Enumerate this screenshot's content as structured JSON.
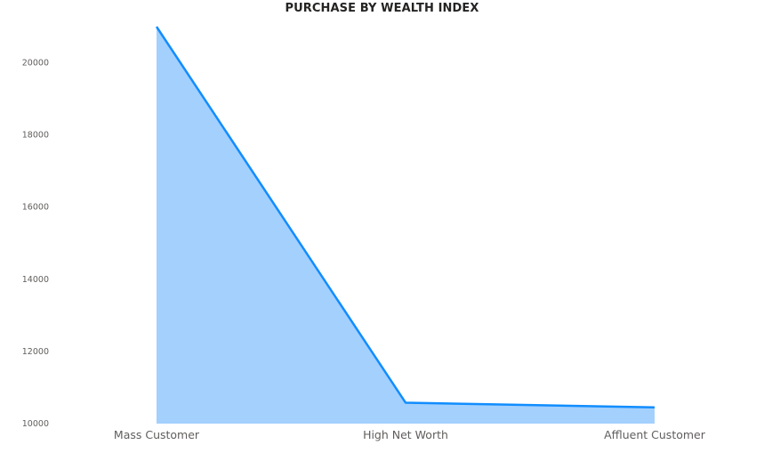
{
  "chart_data": {
    "type": "area",
    "title": "PURCHASE BY WEALTH INDEX",
    "xlabel": "",
    "ylabel": "",
    "categories": [
      "Mass Customer",
      "High Net Worth",
      "Affluent Customer"
    ],
    "series": [
      {
        "values": [
          21000,
          10580,
          10450
        ]
      }
    ],
    "ylim": [
      10000,
      21000
    ],
    "yticks": [
      10000,
      12000,
      14000,
      16000,
      18000,
      20000
    ],
    "grid": false,
    "legend": "none",
    "colors": {
      "line": "#118DFF",
      "fill": "#A3D0FD"
    }
  }
}
